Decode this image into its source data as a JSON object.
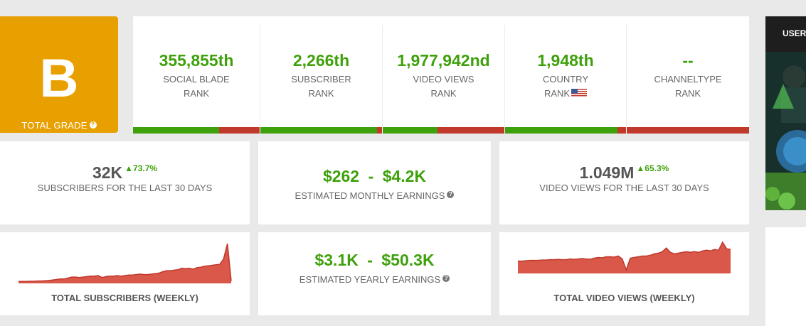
{
  "grade": {
    "letter": "B",
    "label": "TOTAL GRADE",
    "help_icon": "?"
  },
  "ranks": [
    {
      "value": "355,855th",
      "line1": "SOCIAL BLADE",
      "line2": "RANK",
      "progress": 0.68
    },
    {
      "value": "2,266th",
      "line1": "SUBSCRIBER",
      "line2": "RANK",
      "progress": 0.96
    },
    {
      "value": "1,977,942nd",
      "line1": "VIDEO VIEWS",
      "line2": "RANK",
      "progress": 0.45
    },
    {
      "value": "1,948th",
      "line1": "COUNTRY",
      "line2": "RANK",
      "progress": 0.93,
      "flag": "us-flag-icon"
    },
    {
      "value": "--",
      "line1": "CHANNELTYPE",
      "line2": "RANK",
      "progress": 0.0
    }
  ],
  "stats": {
    "subscribers_30d": {
      "value": "32K",
      "delta": "73.7%",
      "label": "SUBSCRIBERS FOR THE LAST 30 DAYS"
    },
    "monthly_earnings": {
      "low": "$262",
      "high": "$4.2K",
      "separator": "-",
      "label": "ESTIMATED MONTHLY EARNINGS"
    },
    "views_30d": {
      "value": "1.049M",
      "delta": "65.3%",
      "label": "VIDEO VIEWS FOR THE LAST 30 DAYS"
    },
    "yearly_earnings": {
      "low": "$3.1K",
      "high": "$50.3K",
      "separator": "-",
      "label": "ESTIMATED YEARLY EARNINGS"
    }
  },
  "charts": {
    "subscribers_title": "TOTAL SUBSCRIBERS (WEEKLY)",
    "views_title": "TOTAL VIDEO VIEWS (WEEKLY)"
  },
  "chart_data": [
    {
      "type": "area",
      "title": "TOTAL SUBSCRIBERS (WEEKLY)",
      "values": [
        1,
        1,
        1,
        1.5,
        1.5,
        2,
        2,
        2.5,
        3,
        4,
        5,
        6,
        6,
        8,
        10,
        10,
        9,
        10,
        11,
        12,
        12,
        13,
        9,
        11,
        12,
        12,
        13,
        12,
        13,
        14,
        14,
        15,
        16,
        15,
        15,
        16,
        17,
        18,
        21,
        23,
        23,
        24,
        25,
        28,
        27,
        28,
        26,
        29,
        30,
        32,
        33,
        34,
        35,
        36,
        47,
        78,
        2
      ]
    },
    {
      "type": "area",
      "title": "TOTAL VIDEO VIEWS (WEEKLY)",
      "values": [
        15,
        15,
        15.5,
        16,
        16,
        16,
        16.5,
        16.5,
        17,
        17,
        17.5,
        17,
        17,
        18,
        17.5,
        18,
        18.5,
        18,
        17.5,
        19,
        20,
        19.5,
        21,
        21,
        20.5,
        22,
        18,
        3,
        19,
        20,
        21,
        22,
        22,
        23,
        25,
        26,
        28,
        33,
        27,
        25,
        26,
        27,
        28,
        27,
        28,
        27,
        29,
        30,
        29,
        31,
        30,
        41,
        32,
        31
      ]
    }
  ],
  "sidebar": {
    "label": "USER"
  },
  "colors": {
    "green": "#3ea10b",
    "red": "#c0392b",
    "grade_bg": "#e8a000",
    "chart_fill": "#d9584a",
    "chart_line": "#c0392b"
  }
}
